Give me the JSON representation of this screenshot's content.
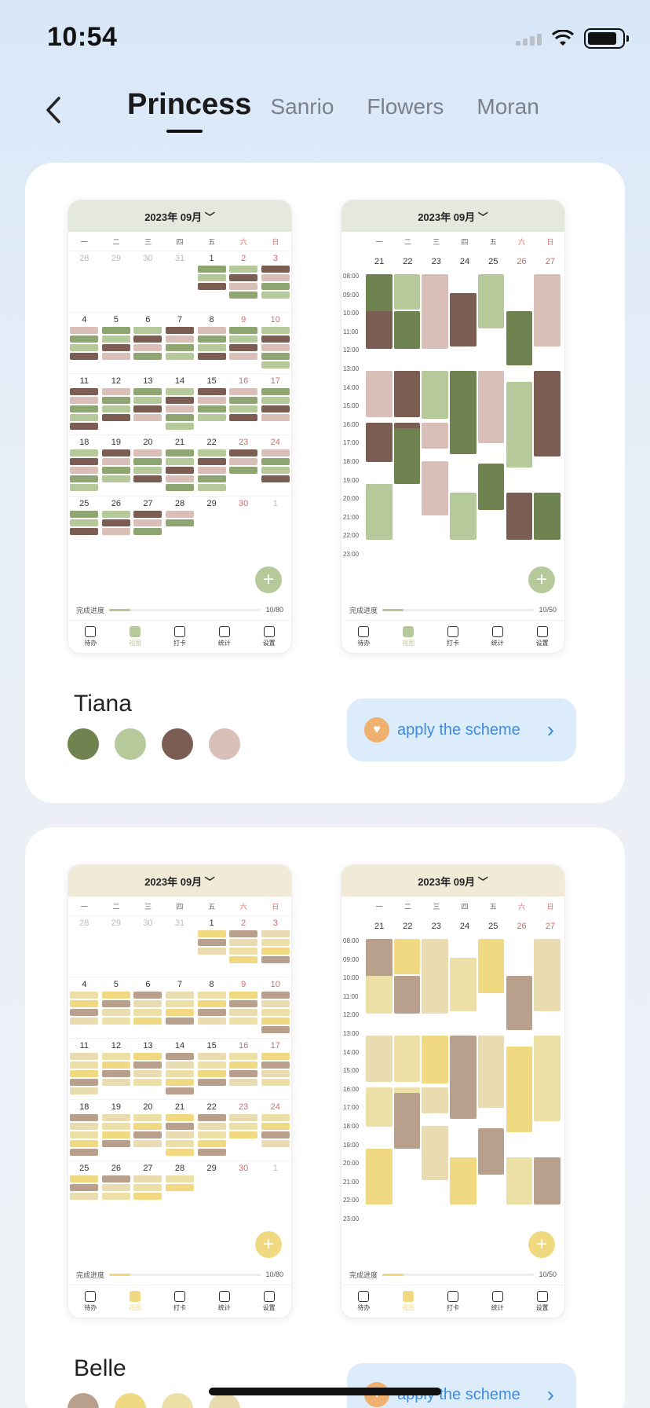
{
  "status": {
    "time": "10:54"
  },
  "nav": {
    "tabs": [
      "Princess",
      "Sanrio",
      "Flowers",
      "Moran"
    ],
    "active_tab": 0
  },
  "schemes": [
    {
      "name": "Tiana",
      "colors": [
        "#6e834f",
        "#b5c99a",
        "#7b5d53",
        "#d9bfb7"
      ],
      "chip_colors": [
        "#8fa672",
        "#b5c99a",
        "#7b5d53",
        "#d9bfb7"
      ],
      "apply_label": "apply the scheme",
      "month_header": "2023年 09月 ﹀",
      "week_header": "2023年 09月 ﹀",
      "month_progress": "10/80",
      "week_progress": "10/50",
      "progress_label": "完成进度"
    },
    {
      "name": "Belle",
      "colors": [
        "#b8a08d",
        "#f0d980",
        "#ece0a6",
        "#e8dcb0"
      ],
      "chip_colors": [
        "#f0d980",
        "#b8a08d",
        "#e8dcb0",
        "#ece0a6"
      ],
      "apply_label": "apply the scheme",
      "month_header": "2023年 09月 ﹀",
      "week_header": "2023年 09月 ﹀",
      "month_progress": "10/80",
      "week_progress": "10/50",
      "progress_label": "完成进度"
    }
  ],
  "weekdays": [
    "一",
    "二",
    "三",
    "四",
    "五",
    "六",
    "日"
  ],
  "month_dates": [
    [
      "28",
      "29",
      "30",
      "31",
      "1",
      "2",
      "3"
    ],
    [
      "4",
      "5",
      "6",
      "7",
      "8",
      "9",
      "10"
    ],
    [
      "11",
      "12",
      "13",
      "14",
      "15",
      "16",
      "17"
    ],
    [
      "18",
      "19",
      "20",
      "21",
      "22",
      "23",
      "24"
    ],
    [
      "25",
      "26",
      "27",
      "28",
      "29",
      "30",
      "1"
    ]
  ],
  "week_dates": [
    "21",
    "22",
    "23",
    "24",
    "25",
    "26",
    "27"
  ],
  "hours": [
    "08:00",
    "09:00",
    "10:00",
    "11:00",
    "12:00",
    "13:00",
    "14:00",
    "15:00",
    "16:00",
    "17:00",
    "18:00",
    "19:00",
    "20:00",
    "21:00",
    "22:00",
    "23:00"
  ],
  "tabbar": [
    "待办",
    "视图",
    "打卡",
    "统计",
    "设置"
  ],
  "tabbar_selected": 1
}
